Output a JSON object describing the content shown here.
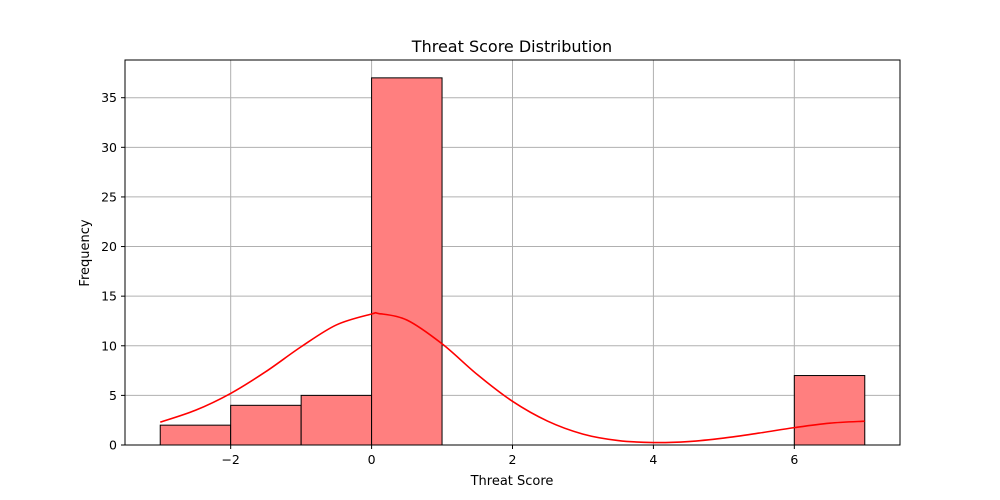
{
  "chart_data": {
    "type": "bar",
    "title": "Threat Score Distribution",
    "xlabel": "Threat Score",
    "ylabel": "Frequency",
    "xlim": [
      -3.5,
      7.5
    ],
    "ylim": [
      0,
      38.8
    ],
    "xticks": [
      -2,
      0,
      2,
      4,
      6
    ],
    "xtick_labels": [
      "−2",
      "0",
      "2",
      "4",
      "6"
    ],
    "yticks": [
      0,
      5,
      10,
      15,
      20,
      25,
      30,
      35
    ],
    "ytick_labels": [
      "0",
      "5",
      "10",
      "15",
      "20",
      "25",
      "30",
      "35"
    ],
    "grid": true,
    "bins": [
      {
        "x0": -3,
        "x1": -2,
        "count": 2
      },
      {
        "x0": -2,
        "x1": -1,
        "count": 4
      },
      {
        "x0": -1,
        "x1": 0,
        "count": 5
      },
      {
        "x0": 0,
        "x1": 1,
        "count": 37
      },
      {
        "x0": 1,
        "x1": 2,
        "count": 0
      },
      {
        "x0": 2,
        "x1": 3,
        "count": 0
      },
      {
        "x0": 3,
        "x1": 4,
        "count": 0
      },
      {
        "x0": 4,
        "x1": 5,
        "count": 0
      },
      {
        "x0": 5,
        "x1": 6,
        "count": 0
      },
      {
        "x0": 6,
        "x1": 7,
        "count": 7
      }
    ],
    "kde": {
      "x": [
        -3,
        -2.5,
        -2,
        -1.5,
        -1,
        -0.5,
        0,
        0.1,
        0.5,
        1,
        1.5,
        2,
        2.5,
        3,
        3.5,
        4,
        4.5,
        5,
        5.5,
        6,
        6.5,
        7
      ],
      "y": [
        2.3,
        3.5,
        5.2,
        7.4,
        9.9,
        12.1,
        13.2,
        13.25,
        12.6,
        10.2,
        7.1,
        4.4,
        2.4,
        1.1,
        0.45,
        0.25,
        0.35,
        0.7,
        1.2,
        1.75,
        2.2,
        2.4
      ]
    },
    "colors": {
      "bar_fill": "#ff7f7f",
      "bar_edge": "#000000",
      "kde_line": "#ff0000",
      "grid": "#b0b0b0"
    }
  }
}
